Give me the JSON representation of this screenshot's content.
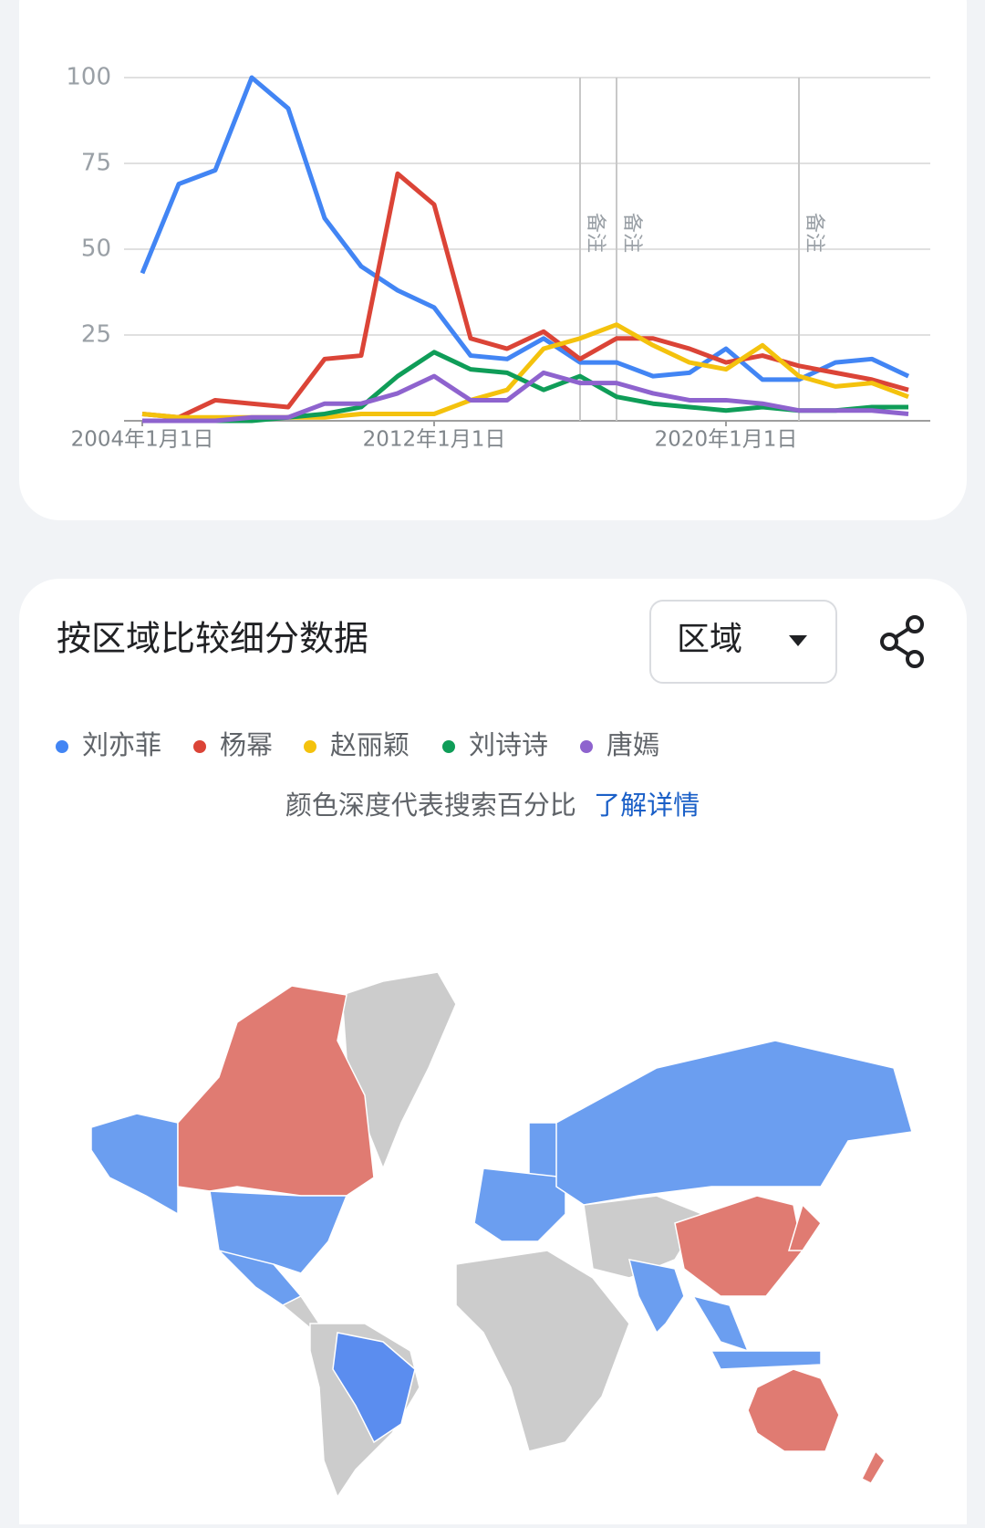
{
  "chart_data": {
    "type": "line",
    "x": [
      2004,
      2005,
      2006,
      2007,
      2008,
      2009,
      2010,
      2011,
      2012,
      2013,
      2014,
      2015,
      2016,
      2017,
      2018,
      2019,
      2020,
      2021,
      2022,
      2023,
      2024,
      2025
    ],
    "series": [
      {
        "name": "刘亦菲",
        "color": "#4285f4",
        "values": [
          43,
          69,
          73,
          100,
          91,
          59,
          45,
          38,
          33,
          19,
          18,
          24,
          17,
          17,
          13,
          14,
          21,
          12,
          12,
          17,
          18,
          13
        ]
      },
      {
        "name": "杨幂",
        "color": "#db4437",
        "values": [
          2,
          1,
          6,
          5,
          4,
          18,
          19,
          72,
          63,
          24,
          21,
          26,
          18,
          24,
          24,
          21,
          17,
          19,
          16,
          14,
          12,
          9
        ]
      },
      {
        "name": "赵丽颖",
        "color": "#f4c20d",
        "values": [
          2,
          1,
          1,
          1,
          1,
          1,
          2,
          2,
          2,
          6,
          9,
          21,
          24,
          28,
          22,
          17,
          15,
          22,
          13,
          10,
          11,
          7
        ]
      },
      {
        "name": "刘诗诗",
        "color": "#0f9d58",
        "values": [
          0,
          0,
          0,
          0,
          1,
          2,
          4,
          13,
          20,
          15,
          14,
          9,
          13,
          7,
          5,
          4,
          3,
          4,
          3,
          3,
          4,
          4
        ]
      },
      {
        "name": "唐嫣",
        "color": "#8e63ce",
        "values": [
          0,
          0,
          0,
          1,
          1,
          5,
          5,
          8,
          13,
          6,
          6,
          14,
          11,
          11,
          8,
          6,
          6,
          5,
          3,
          3,
          3,
          2
        ]
      }
    ],
    "xlim": [
      2003.5,
      2025.6
    ],
    "xticks": [
      {
        "value": 2004,
        "label": "2004年1月1日"
      },
      {
        "value": 2012,
        "label": "2012年1月1日"
      },
      {
        "value": 2020,
        "label": "2020年1月1日"
      }
    ],
    "ylim": [
      0,
      100
    ],
    "yticks": [
      25,
      50,
      75,
      100
    ],
    "grid": true,
    "annotations": [
      {
        "x": 2016,
        "label": "备注"
      },
      {
        "x": 2017,
        "label": "备注"
      },
      {
        "x": 2022,
        "label": "备注"
      }
    ]
  },
  "region": {
    "title": "按区域比较细分数据",
    "dropdown": "区域",
    "note": "颜色深度代表搜索百分比",
    "link": "了解详情"
  }
}
